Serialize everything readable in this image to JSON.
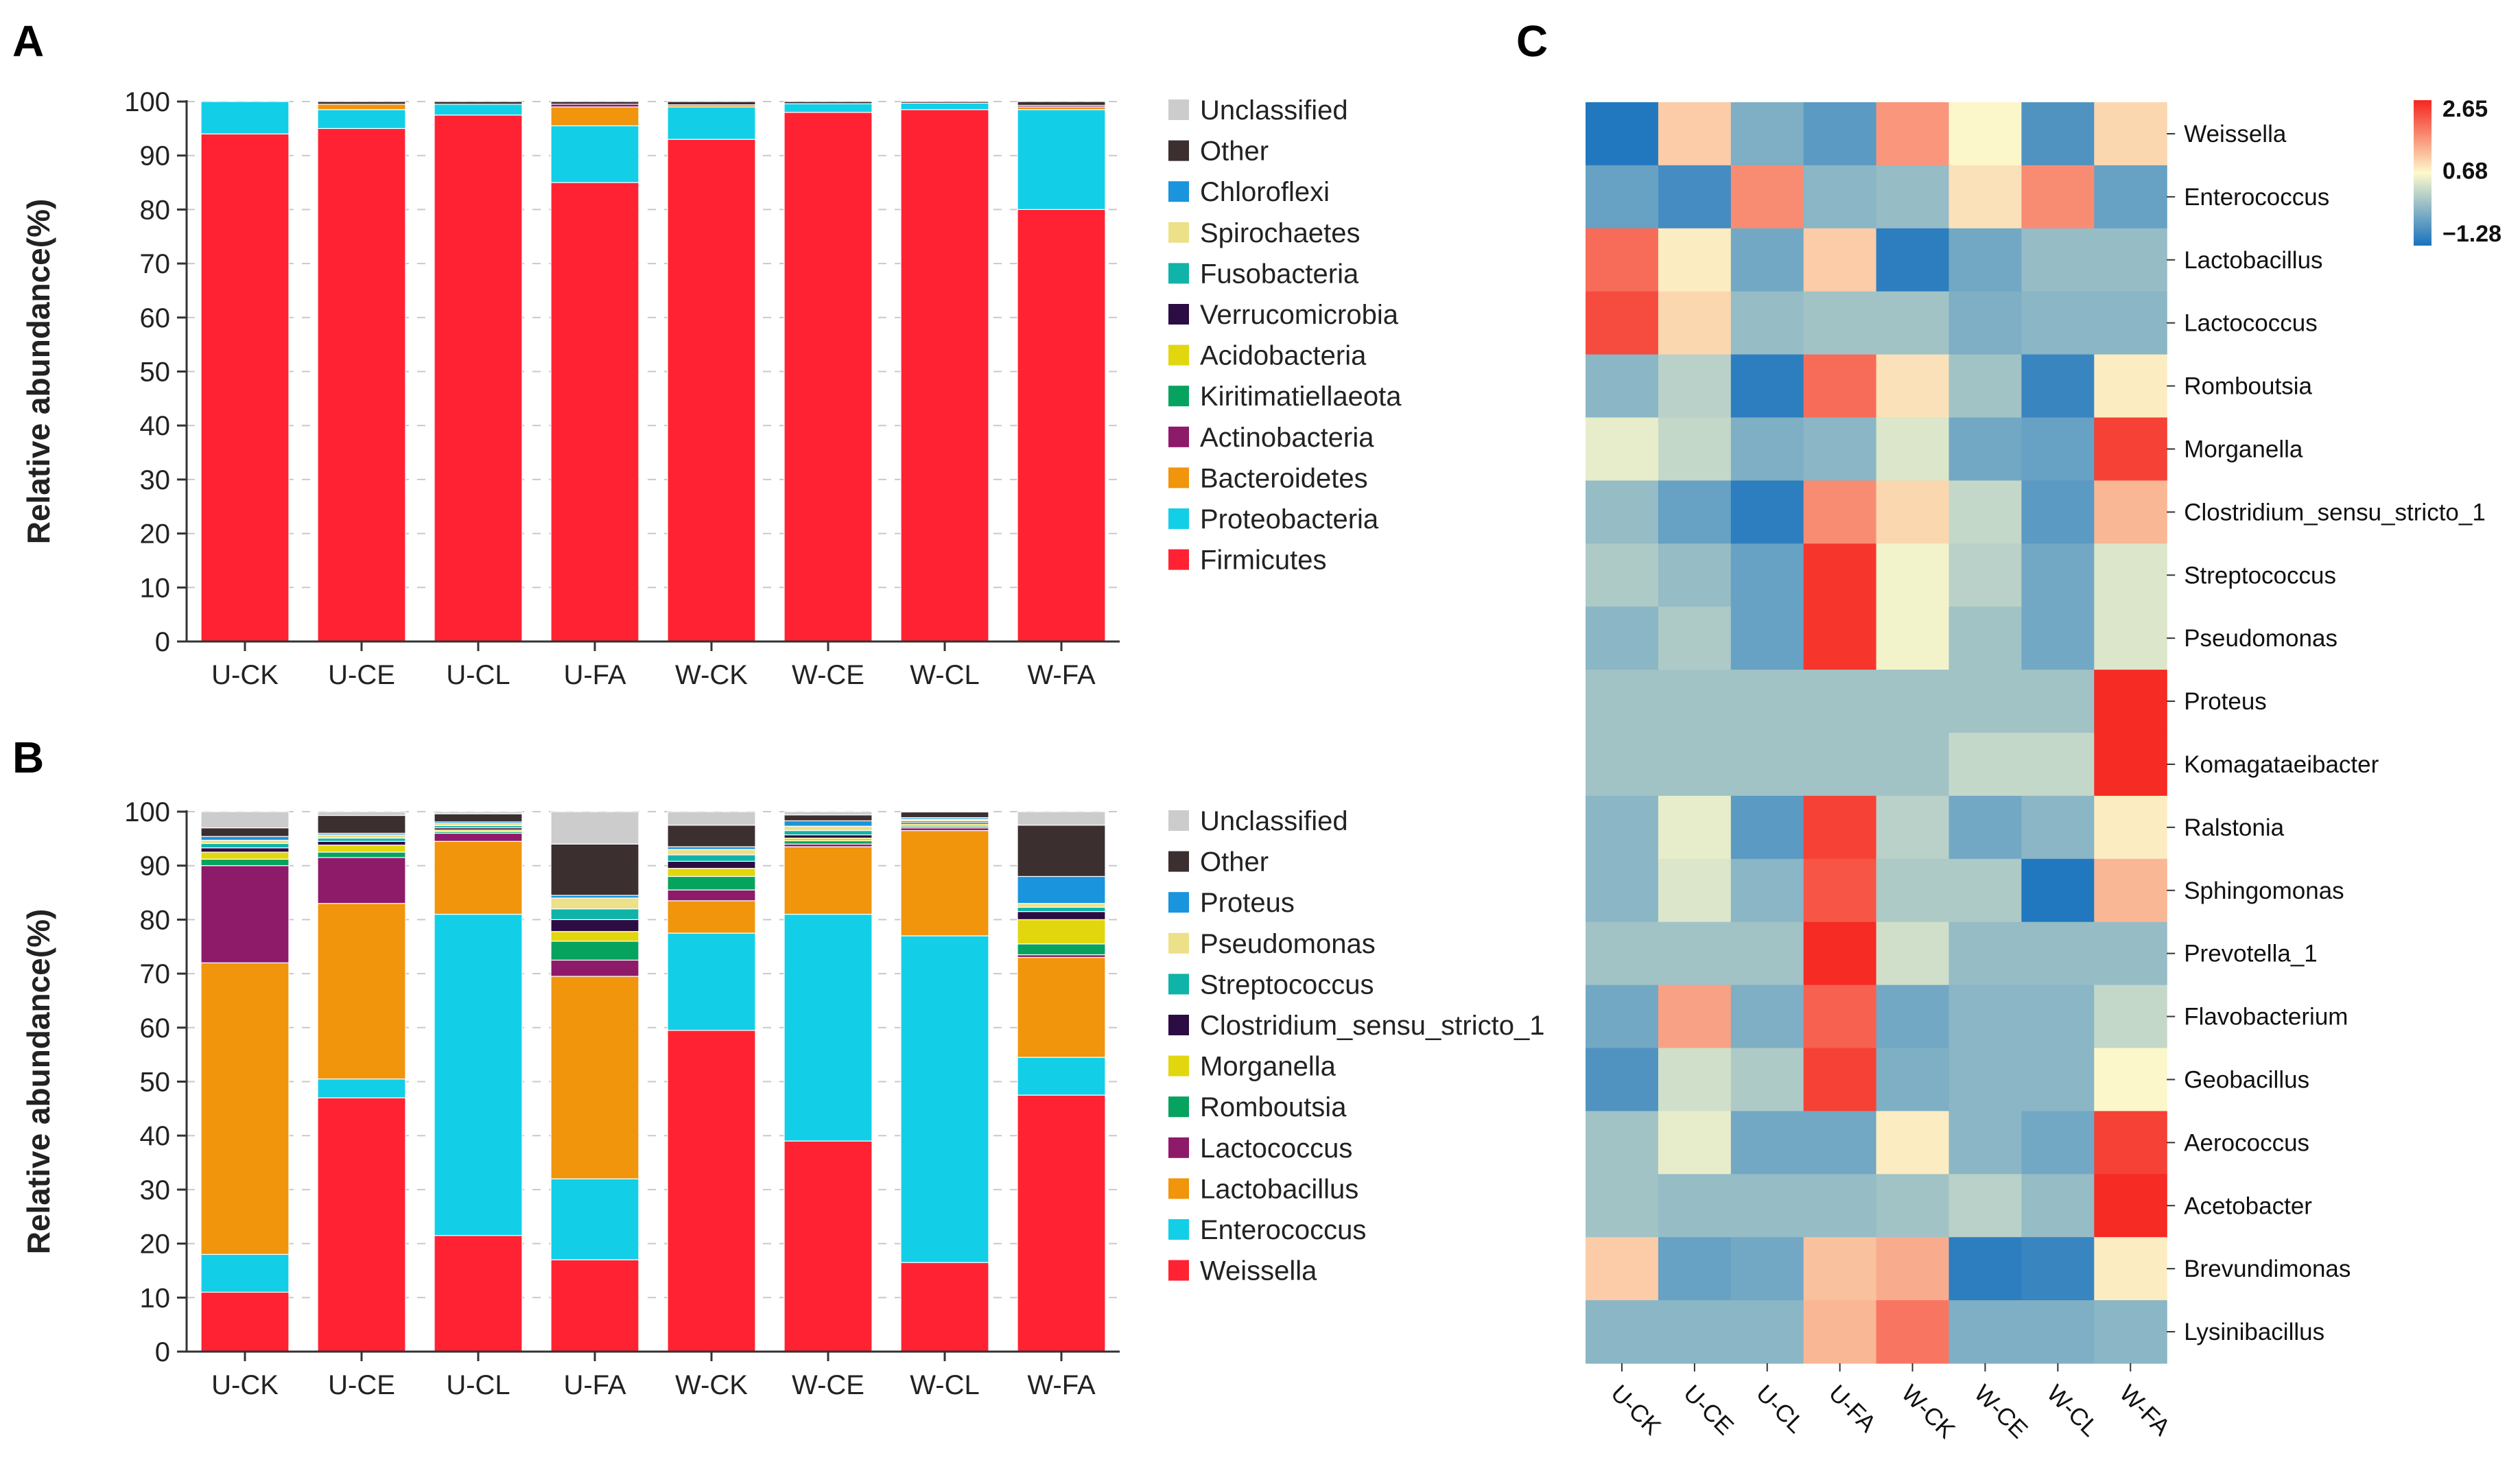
{
  "panels": {
    "a": "A",
    "b": "B",
    "c": "C"
  },
  "colors": {
    "Unclassified": "#cccccc",
    "Other": "#3b2f2f",
    "Chloroflexi": "#1a94dc",
    "Spirochaetes": "#ece089",
    "Fusobacteria": "#10b3a8",
    "Verrucomicrobia": "#2b0d44",
    "Acidobacteria": "#e2d60e",
    "Kiritimatiellaeota": "#06a35f",
    "Actinobacteria": "#8e1a6a",
    "Bacteroidetes": "#f0950c",
    "Proteobacteria": "#12cfe7",
    "Firmicutes": "#ff2232",
    "Proteus": "#1a94dc",
    "Pseudomonas": "#ece089",
    "Streptococcus": "#10b3a8",
    "Clostridium_sensu_stricto_1": "#2b0d44",
    "Morganella": "#e2d60e",
    "Romboutsia": "#06a35f",
    "Lactococcus": "#8e1a6a",
    "Lactobacillus": "#f0950c",
    "Enterococcus": "#12cfe7",
    "Weissella": "#ff2232"
  },
  "chart_data": [
    {
      "type": "bar",
      "stacked": true,
      "panel": "A",
      "ylabel": "Relative abundance(%)",
      "ylim": [
        0,
        100
      ],
      "yticks": [
        0,
        10,
        20,
        30,
        40,
        50,
        60,
        70,
        80,
        90,
        100
      ],
      "categories": [
        "U-CK",
        "U-CE",
        "U-CL",
        "U-FA",
        "W-CK",
        "W-CE",
        "W-CL",
        "W-FA"
      ],
      "legend": [
        "Unclassified",
        "Other",
        "Chloroflexi",
        "Spirochaetes",
        "Fusobacteria",
        "Verrucomicrobia",
        "Acidobacteria",
        "Kiritimatiellaeota",
        "Actinobacteria",
        "Bacteroidetes",
        "Proteobacteria",
        "Firmicutes"
      ],
      "series": [
        {
          "name": "Firmicutes",
          "values": [
            94,
            95,
            97.5,
            85,
            93,
            98,
            98.5,
            80
          ]
        },
        {
          "name": "Proteobacteria",
          "values": [
            6,
            3.5,
            2,
            10.5,
            6,
            1.6,
            1.2,
            18.5
          ]
        },
        {
          "name": "Bacteroidetes",
          "values": [
            0,
            1,
            0,
            3.5,
            0.4,
            0,
            0,
            0.5
          ]
        },
        {
          "name": "Actinobacteria",
          "values": [
            0,
            0,
            0,
            0.5,
            0,
            0,
            0,
            0.3
          ]
        },
        {
          "name": "Other",
          "values": [
            0,
            0.5,
            0.5,
            0.5,
            0.6,
            0.4,
            0.3,
            0.7
          ]
        }
      ]
    },
    {
      "type": "bar",
      "stacked": true,
      "panel": "B",
      "ylabel": "Relative abundance(%)",
      "ylim": [
        0,
        100
      ],
      "yticks": [
        0,
        10,
        20,
        30,
        40,
        50,
        60,
        70,
        80,
        90,
        100
      ],
      "categories": [
        "U-CK",
        "U-CE",
        "U-CL",
        "U-FA",
        "W-CK",
        "W-CE",
        "W-CL",
        "W-FA"
      ],
      "legend": [
        "Unclassified",
        "Other",
        "Proteus",
        "Pseudomonas",
        "Streptococcus",
        "Clostridium_sensu_stricto_1",
        "Morganella",
        "Romboutsia",
        "Lactococcus",
        "Lactobacillus",
        "Enterococcus",
        "Weissella"
      ],
      "series": [
        {
          "name": "Weissella",
          "values": [
            11,
            47,
            21.5,
            17,
            59.5,
            39,
            16.5,
            47.5
          ]
        },
        {
          "name": "Enterococcus",
          "values": [
            7,
            3.5,
            59.5,
            15,
            18,
            42,
            60.5,
            7
          ]
        },
        {
          "name": "Lactobacillus",
          "values": [
            54,
            32.5,
            13.5,
            37.5,
            6,
            12.5,
            19.5,
            18.5
          ]
        },
        {
          "name": "Lactococcus",
          "values": [
            18,
            8.5,
            1.5,
            3,
            2,
            0.5,
            0.5,
            0.5
          ]
        },
        {
          "name": "Romboutsia",
          "values": [
            1.2,
            1,
            0.3,
            3.5,
            2.5,
            0.6,
            0.3,
            2
          ]
        },
        {
          "name": "Morganella",
          "values": [
            1.3,
            1.3,
            0.3,
            1.8,
            1.5,
            0.5,
            0.4,
            4.5
          ]
        },
        {
          "name": "Clostridium_sensu_stricto_1",
          "values": [
            0.8,
            0.7,
            0.4,
            2.2,
            1.3,
            0.6,
            0.3,
            1.5
          ]
        },
        {
          "name": "Streptococcus",
          "values": [
            0.8,
            0.6,
            0.4,
            2,
            1.2,
            0.8,
            0.3,
            0.8
          ]
        },
        {
          "name": "Pseudomonas",
          "values": [
            0.6,
            0.6,
            0.4,
            2,
            1,
            0.8,
            0.3,
            0.7
          ]
        },
        {
          "name": "Proteus",
          "values": [
            0.7,
            0.3,
            0.3,
            0.5,
            0.5,
            1,
            0.3,
            5
          ]
        },
        {
          "name": "Other",
          "values": [
            1.6,
            3.3,
            1.5,
            9.5,
            4,
            1.1,
            1.1,
            9.5
          ]
        },
        {
          "name": "Unclassified",
          "values": [
            3.2,
            1.2,
            1.5,
            6.5,
            2.5,
            0.6,
            0.7,
            2.5
          ]
        }
      ]
    },
    {
      "type": "heatmap",
      "panel": "C",
      "colorbar": {
        "min": -1.28,
        "mid": 0.68,
        "max": 2.65,
        "labels": [
          "2.65",
          "0.68",
          "−1.28"
        ]
      },
      "columns": [
        "U-CK",
        "U-CE",
        "U-CL",
        "U-FA",
        "W-CK",
        "W-CE",
        "W-CL",
        "W-FA"
      ],
      "rows": [
        "Weissella",
        "Enterococcus",
        "Lactobacillus",
        "Lactococcus",
        "Romboutsia",
        "Morganella",
        "Clostridium_sensu_stricto_1",
        "Streptococcus",
        "Pseudomonas",
        "Proteus",
        "Komagataeibacter",
        "Ralstonia",
        "Sphingomonas",
        "Prevotella_1",
        "Flavobacterium",
        "Geobacillus",
        "Aerococcus",
        "Acetobacter",
        "Brevundimonas",
        "Lysinibacillus"
      ],
      "values": [
        [
          -1.2,
          1.1,
          -0.4,
          -0.7,
          1.6,
          0.7,
          -0.8,
          1.0
        ],
        [
          -0.6,
          -0.9,
          1.7,
          -0.3,
          -0.2,
          0.9,
          1.7,
          -0.6
        ],
        [
          2.0,
          0.8,
          -0.5,
          1.1,
          -1.1,
          -0.5,
          -0.2,
          -0.2
        ],
        [
          2.3,
          1.0,
          -0.2,
          -0.1,
          -0.1,
          -0.4,
          -0.3,
          -0.3
        ],
        [
          -0.3,
          0.1,
          -1.1,
          2.0,
          0.9,
          -0.1,
          -1.0,
          0.8
        ],
        [
          0.5,
          0.2,
          -0.4,
          -0.3,
          0.4,
          -0.5,
          -0.6,
          2.4
        ],
        [
          -0.2,
          -0.6,
          -1.1,
          1.7,
          1.0,
          0.2,
          -0.7,
          1.3
        ],
        [
          0.0,
          -0.2,
          -0.6,
          2.5,
          0.6,
          0.1,
          -0.5,
          0.4
        ],
        [
          -0.3,
          0.0,
          -0.6,
          2.5,
          0.6,
          -0.1,
          -0.5,
          0.4
        ],
        [
          -0.1,
          -0.1,
          -0.1,
          -0.1,
          -0.1,
          -0.1,
          -0.1,
          2.6
        ],
        [
          -0.1,
          -0.1,
          -0.1,
          -0.1,
          -0.1,
          0.2,
          0.2,
          2.6
        ],
        [
          -0.3,
          0.5,
          -0.7,
          2.4,
          0.1,
          -0.5,
          -0.3,
          0.8
        ],
        [
          -0.3,
          0.4,
          -0.3,
          2.2,
          0.0,
          0.0,
          -1.2,
          1.3
        ],
        [
          -0.1,
          -0.1,
          -0.1,
          2.6,
          0.3,
          -0.2,
          -0.2,
          -0.2
        ],
        [
          -0.5,
          1.5,
          -0.4,
          2.1,
          -0.5,
          -0.3,
          -0.3,
          0.2
        ],
        [
          -0.8,
          0.3,
          0.0,
          2.4,
          -0.4,
          -0.3,
          -0.3,
          0.7
        ],
        [
          -0.1,
          0.5,
          -0.5,
          -0.5,
          0.8,
          -0.3,
          -0.5,
          2.4
        ],
        [
          -0.1,
          -0.2,
          -0.2,
          -0.2,
          -0.1,
          0.1,
          -0.2,
          2.6
        ],
        [
          1.1,
          -0.6,
          -0.5,
          1.2,
          1.4,
          -1.1,
          -1.0,
          0.8
        ],
        [
          -0.3,
          -0.3,
          -0.3,
          1.3,
          1.9,
          -0.4,
          -0.4,
          -0.3
        ]
      ]
    }
  ]
}
